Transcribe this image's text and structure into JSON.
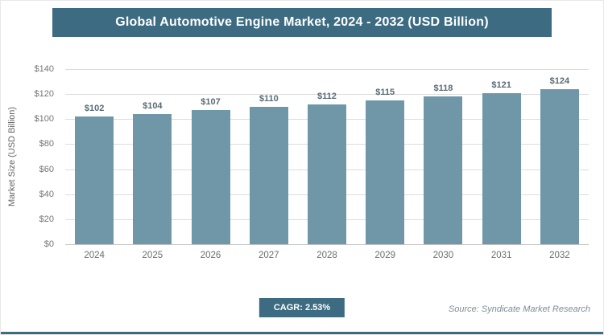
{
  "header": {
    "title": "Global Automotive Engine Market, 2024 - 2032 (USD Billion)"
  },
  "chart_data": {
    "type": "bar",
    "title": "Global Automotive Engine Market, 2024 - 2032 (USD Billion)",
    "categories": [
      "2024",
      "2025",
      "2026",
      "2027",
      "2028",
      "2029",
      "2030",
      "2031",
      "2032"
    ],
    "values": [
      102,
      104,
      107,
      110,
      112,
      115,
      118,
      121,
      124
    ],
    "value_labels": [
      "$102",
      "$104",
      "$107",
      "$110",
      "$112",
      "$115",
      "$118",
      "$121",
      "$124"
    ],
    "xlabel": "",
    "ylabel": "Market Size (USD Billion)",
    "ylim": [
      0,
      140
    ],
    "yticks": [
      0,
      20,
      40,
      60,
      80,
      100,
      120,
      140
    ],
    "ytick_labels": [
      "$0",
      "$20",
      "$40",
      "$60",
      "$80",
      "$100",
      "$120",
      "$140"
    ],
    "grid": true,
    "legend": "none",
    "bar_color": "#6f97a8"
  },
  "footer": {
    "cagr_label": "CAGR: 2.53%",
    "source": "Source: Syndicate Market Research"
  },
  "colors": {
    "primary": "#3d6c82",
    "bar": "#6f97a8",
    "gridline": "#dcdcdc",
    "value_label_text": "#5a6b76",
    "axis_text": "#6e6e6e"
  }
}
